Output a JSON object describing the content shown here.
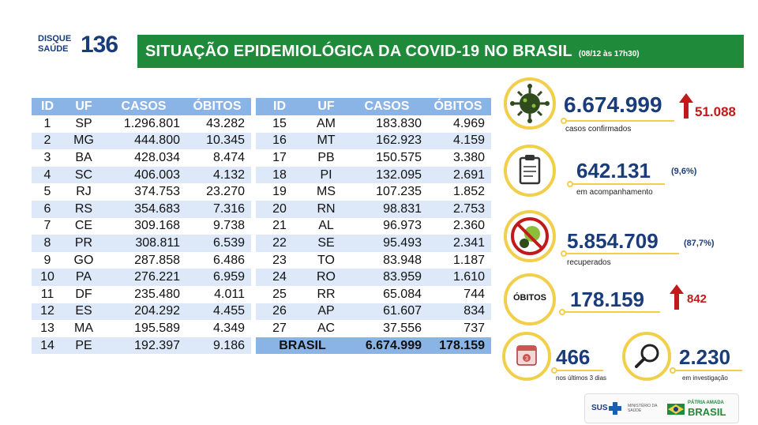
{
  "logo": {
    "line1": "DISQUE",
    "line2": "SAÚDE",
    "number": "136"
  },
  "banner": {
    "title": "SITUAÇÃO EPIDEMIOLÓGICA DA COVID-19 NO BRASIL",
    "date": "(08/12 às 17h30)"
  },
  "table": {
    "headers": [
      "ID",
      "UF",
      "CASOS",
      "ÓBITOS"
    ],
    "left": [
      [
        "1",
        "SP",
        "1.296.801",
        "43.282"
      ],
      [
        "2",
        "MG",
        "444.800",
        "10.345"
      ],
      [
        "3",
        "BA",
        "428.034",
        "8.474"
      ],
      [
        "4",
        "SC",
        "406.003",
        "4.132"
      ],
      [
        "5",
        "RJ",
        "374.753",
        "23.270"
      ],
      [
        "6",
        "RS",
        "354.683",
        "7.316"
      ],
      [
        "7",
        "CE",
        "309.168",
        "9.738"
      ],
      [
        "8",
        "PR",
        "308.811",
        "6.539"
      ],
      [
        "9",
        "GO",
        "287.858",
        "6.486"
      ],
      [
        "10",
        "PA",
        "276.221",
        "6.959"
      ],
      [
        "11",
        "DF",
        "235.480",
        "4.011"
      ],
      [
        "12",
        "ES",
        "204.292",
        "4.455"
      ],
      [
        "13",
        "MA",
        "195.589",
        "4.349"
      ],
      [
        "14",
        "PE",
        "192.397",
        "9.186"
      ]
    ],
    "right": [
      [
        "15",
        "AM",
        "183.830",
        "4.969"
      ],
      [
        "16",
        "MT",
        "162.923",
        "4.159"
      ],
      [
        "17",
        "PB",
        "150.575",
        "3.380"
      ],
      [
        "18",
        "PI",
        "132.095",
        "2.691"
      ],
      [
        "19",
        "MS",
        "107.235",
        "1.852"
      ],
      [
        "20",
        "RN",
        "98.831",
        "2.753"
      ],
      [
        "21",
        "AL",
        "96.973",
        "2.360"
      ],
      [
        "22",
        "SE",
        "95.493",
        "2.341"
      ],
      [
        "23",
        "TO",
        "83.948",
        "1.187"
      ],
      [
        "24",
        "RO",
        "83.959",
        "1.610"
      ],
      [
        "25",
        "RR",
        "65.084",
        "744"
      ],
      [
        "26",
        "AP",
        "61.607",
        "834"
      ],
      [
        "27",
        "AC",
        "37.556",
        "737"
      ]
    ],
    "total": {
      "label": "BRASIL",
      "casos": "6.674.999",
      "obitos": "178.159"
    }
  },
  "stats": {
    "confirmed": {
      "value": "6.674.999",
      "increase": "51.088",
      "label": "casos confirmados"
    },
    "monitoring": {
      "value": "642.131",
      "pct": "(9,6%)",
      "label": "em acompanhamento"
    },
    "recovered": {
      "value": "5.854.709",
      "pct": "(87,7%)",
      "label": "recuperados"
    },
    "deaths": {
      "badge": "ÓBITOS",
      "value": "178.159",
      "increase": "842"
    },
    "last3days": {
      "value": "466",
      "label": "nos últimos 3 dias"
    },
    "investigation": {
      "value": "2.230",
      "label": "em investigação"
    }
  },
  "colors": {
    "green": "#1e8a3a",
    "navy": "#1a3c7a",
    "yellow": "#f2cf4a",
    "red": "#c21a1a",
    "header_blue": "#8ab3e6",
    "row_blue": "#dde9f8"
  },
  "footer": {
    "sus": "SUS",
    "ministerio": "MINISTÉRIO DA SAÚDE",
    "patria": "PÁTRIA AMADA",
    "brasil": "BRASIL"
  }
}
